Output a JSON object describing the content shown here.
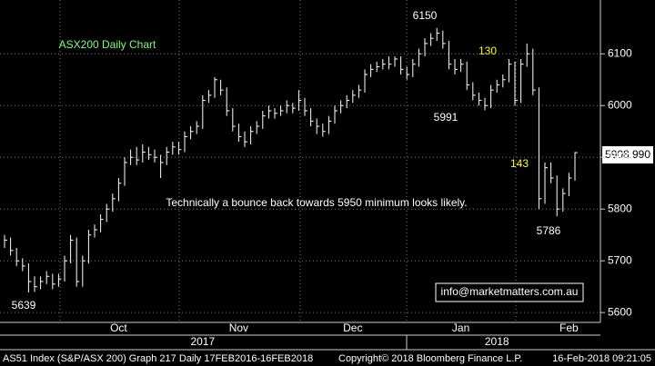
{
  "chart_data": {
    "type": "hlc",
    "title": "ASX200 Daily Chart",
    "last_price_label": "5908.990",
    "email": "info@marketmatters.com.au",
    "annotations": [
      {
        "text": "6150",
        "color": "#ffffff"
      },
      {
        "text": "5991",
        "color": "#ffffff"
      },
      {
        "text": "130",
        "color": "#ffff00"
      },
      {
        "text": "143",
        "color": "#ffff00"
      },
      {
        "text": "5786",
        "color": "#ffffff"
      },
      {
        "text": "5639",
        "color": "#ffffff"
      },
      {
        "text": "Technically a bounce back towards 5950 minimum looks likely.",
        "color": "#ffffff"
      }
    ],
    "status": [
      "AS51 Index (S&P/ASX 200) Graph 217  Daily 17FEB2016-16FEB2018",
      "Copyright© 2018 Bloomberg Finance L.P.",
      "16-Feb-2018 09:21:05"
    ],
    "color": "#ffffff",
    "title_color": "#7cff7c",
    "categories": [
      null,
      null,
      null,
      null,
      null,
      null,
      null,
      null,
      null,
      null,
      null,
      null,
      null,
      null,
      null,
      null,
      null,
      null,
      null,
      "Oct",
      null,
      null,
      null,
      null,
      null,
      null,
      null,
      null,
      null,
      null,
      null,
      null,
      null,
      null,
      null,
      null,
      null,
      null,
      null,
      "Nov",
      null,
      null,
      null,
      null,
      null,
      null,
      null,
      null,
      null,
      null,
      null,
      null,
      null,
      null,
      null,
      null,
      null,
      null,
      "Dec",
      null,
      null,
      null,
      null,
      null,
      null,
      null,
      null,
      null,
      null,
      null,
      null,
      null,
      null,
      null,
      null,
      null,
      "Jan",
      null,
      null,
      null,
      null,
      null,
      null,
      null,
      null,
      null,
      null,
      null,
      null,
      null,
      null,
      null,
      null,
      null,
      "Feb",
      null
    ],
    "years": [
      null,
      null,
      null,
      null,
      null,
      null,
      null,
      null,
      null,
      null,
      null,
      null,
      null,
      null,
      null,
      null,
      null,
      null,
      null,
      null,
      null,
      null,
      null,
      null,
      null,
      null,
      null,
      null,
      null,
      null,
      null,
      null,
      null,
      "2017",
      null,
      null,
      null,
      null,
      null,
      null,
      null,
      null,
      null,
      null,
      null,
      null,
      null,
      null,
      null,
      null,
      null,
      null,
      null,
      null,
      null,
      null,
      null,
      null,
      null,
      null,
      null,
      null,
      null,
      null,
      null,
      null,
      null,
      null,
      null,
      null,
      null,
      null,
      null,
      null,
      null,
      null,
      null,
      null,
      null,
      null,
      null,
      null,
      "2018",
      null,
      null,
      null,
      null,
      null,
      null,
      null,
      null,
      null,
      null,
      null,
      null,
      null
    ],
    "high": [
      5750,
      5745,
      5725,
      5705,
      5695,
      5670,
      5670,
      5680,
      5675,
      5675,
      5710,
      5750,
      5745,
      5710,
      5760,
      5770,
      5790,
      5810,
      5830,
      5860,
      5900,
      5915,
      5920,
      5925,
      5920,
      5915,
      5905,
      5920,
      5930,
      5930,
      5950,
      5960,
      5970,
      6020,
      6030,
      6055,
      6050,
      6035,
      5995,
      5965,
      5950,
      5960,
      5970,
      5990,
      6000,
      5995,
      6000,
      6010,
      6005,
      6030,
      6015,
      5995,
      5975,
      5965,
      5980,
      6000,
      6010,
      6020,
      6030,
      6040,
      6070,
      6080,
      6085,
      6090,
      6095,
      6095,
      6095,
      6075,
      6090,
      6110,
      6130,
      6140,
      6150,
      6145,
      6125,
      6090,
      6090,
      6085,
      6045,
      6025,
      6015,
      6040,
      6050,
      6060,
      6090,
      6085,
      6090,
      6120,
      6110,
      6035,
      5890,
      5890,
      5865,
      5840,
      5870,
      5910
    ],
    "low": [
      5725,
      5710,
      5690,
      5680,
      5639,
      5640,
      5645,
      5655,
      5645,
      5650,
      5660,
      5695,
      5650,
      5650,
      5695,
      5745,
      5755,
      5775,
      5795,
      5815,
      5845,
      5885,
      5885,
      5890,
      5895,
      5890,
      5860,
      5885,
      5905,
      5905,
      5910,
      5935,
      5945,
      5955,
      6005,
      6015,
      6020,
      5980,
      5950,
      5930,
      5920,
      5925,
      5945,
      5955,
      5975,
      5975,
      5980,
      5985,
      5985,
      5990,
      5980,
      5960,
      5945,
      5940,
      5945,
      5965,
      5985,
      5995,
      6005,
      6015,
      6025,
      6055,
      6065,
      6070,
      6070,
      6075,
      6060,
      6050,
      6055,
      6075,
      6095,
      6115,
      6125,
      6110,
      6070,
      6060,
      6065,
      6030,
      6010,
      6000,
      5991,
      5995,
      6025,
      6035,
      6045,
      6000,
      6005,
      6075,
      6020,
      5800,
      5810,
      5850,
      5786,
      5795,
      5825,
      5855
    ],
    "close": [
      5740,
      5720,
      5700,
      5690,
      5660,
      5650,
      5660,
      5670,
      5655,
      5665,
      5700,
      5740,
      5660,
      5700,
      5750,
      5760,
      5780,
      5800,
      5820,
      5850,
      5890,
      5900,
      5895,
      5910,
      5905,
      5900,
      5890,
      5910,
      5920,
      5915,
      5940,
      5950,
      5960,
      6010,
      6020,
      6050,
      6030,
      5990,
      5960,
      5940,
      5930,
      5950,
      5960,
      5980,
      5990,
      5985,
      5990,
      6000,
      5995,
      6010,
      5990,
      5970,
      5960,
      5950,
      5970,
      5990,
      6000,
      6010,
      6020,
      6030,
      6060,
      6070,
      6075,
      6080,
      6080,
      6090,
      6070,
      6060,
      6080,
      6100,
      6120,
      6130,
      6140,
      6120,
      6080,
      6070,
      6080,
      6040,
      6020,
      6010,
      6000,
      6030,
      6040,
      6050,
      6080,
      6010,
      6080,
      6100,
      6030,
      5820,
      5880,
      5860,
      5800,
      5830,
      5860,
      5909
    ],
    "ylim": [
      5581,
      6204
    ],
    "yticks": [
      5600,
      5700,
      5800,
      5900,
      6000,
      6100
    ],
    "grid": true
  }
}
